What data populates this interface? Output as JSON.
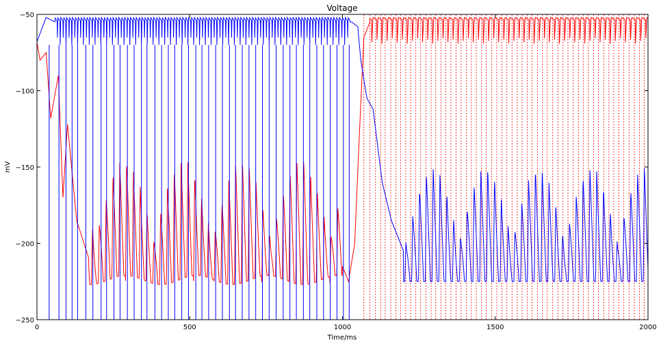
{
  "chart_data": {
    "type": "line",
    "title": "Voltage",
    "xlabel": "Time/ms",
    "ylabel": "mV",
    "xlim": [
      0,
      2000
    ],
    "ylim": [
      -250,
      -50
    ],
    "x_ticks": [
      0,
      500,
      1000,
      1500,
      2000
    ],
    "x_tick_labels": [
      "0",
      "500",
      "1000",
      "1500",
      "2000"
    ],
    "y_ticks": [
      -250,
      -200,
      -150,
      -100,
      -50
    ],
    "y_tick_labels": [
      "−250",
      "−200",
      "−150",
      "−100",
      "−50"
    ],
    "grid": false,
    "series": [
      {
        "color": "#0000ff",
        "style": "solid",
        "description_points": [
          {
            "x": 0,
            "y": -68
          },
          {
            "x": 30,
            "y": -52
          },
          {
            "x": 60,
            "y": -55
          },
          {
            "x": 1030,
            "y": -55
          },
          {
            "x": 1050,
            "y": -58
          },
          {
            "x": 1060,
            "y": -80
          },
          {
            "x": 1080,
            "y": -105
          },
          {
            "x": 1100,
            "y": -112
          },
          {
            "x": 1130,
            "y": -160
          },
          {
            "x": 1160,
            "y": -185
          },
          {
            "x": 1200,
            "y": -205
          },
          {
            "x": 2000,
            "y": -185
          }
        ],
        "spike_times": [
          40,
          72,
          95,
          115,
          133,
          160,
          183,
          210,
          228,
          252,
          272,
          296,
          318,
          342,
          360,
          386,
          408,
          430,
          451,
          474,
          496,
          520,
          540,
          562,
          585,
          607,
          630,
          650,
          672,
          694,
          716,
          738,
          760,
          783,
          806,
          828,
          849,
          872,
          893,
          916,
          938,
          960,
          982,
          1003,
          1022
        ],
        "burst_trough": -70,
        "burst_peak": -52
      },
      {
        "color": "#ff0000",
        "style": "solid",
        "description_points": [
          {
            "x": 0,
            "y": -68
          },
          {
            "x": 10,
            "y": -80
          },
          {
            "x": 30,
            "y": -75
          },
          {
            "x": 45,
            "y": -118
          },
          {
            "x": 70,
            "y": -90
          },
          {
            "x": 85,
            "y": -170
          },
          {
            "x": 100,
            "y": -122
          },
          {
            "x": 130,
            "y": -185
          },
          {
            "x": 170,
            "y": -210
          },
          {
            "x": 1000,
            "y": -215
          },
          {
            "x": 1020,
            "y": -225
          },
          {
            "x": 1040,
            "y": -200
          },
          {
            "x": 1055,
            "y": -130
          },
          {
            "x": 1070,
            "y": -65
          },
          {
            "x": 1090,
            "y": -55
          },
          {
            "x": 2000,
            "y": -55
          }
        ],
        "burst_trough": -70,
        "burst_peak": -52,
        "oscillation_range": [
          -227,
          -145
        ]
      },
      {
        "color": "#ff0000",
        "style": "dotted",
        "spike_times": [
          1070,
          1090,
          1108,
          1125,
          1140,
          1158,
          1175,
          1190,
          1207,
          1223,
          1240,
          1255,
          1273,
          1290,
          1305,
          1322,
          1338,
          1355,
          1372,
          1388,
          1405,
          1422,
          1438,
          1455,
          1470,
          1488,
          1505,
          1522,
          1538,
          1555,
          1572,
          1588,
          1605,
          1620,
          1638,
          1655,
          1670,
          1688,
          1705,
          1722,
          1738,
          1755,
          1772,
          1788,
          1805,
          1822,
          1838,
          1855,
          1872,
          1888,
          1905,
          1920,
          1938,
          1955,
          1972,
          1988
        ]
      }
    ]
  }
}
